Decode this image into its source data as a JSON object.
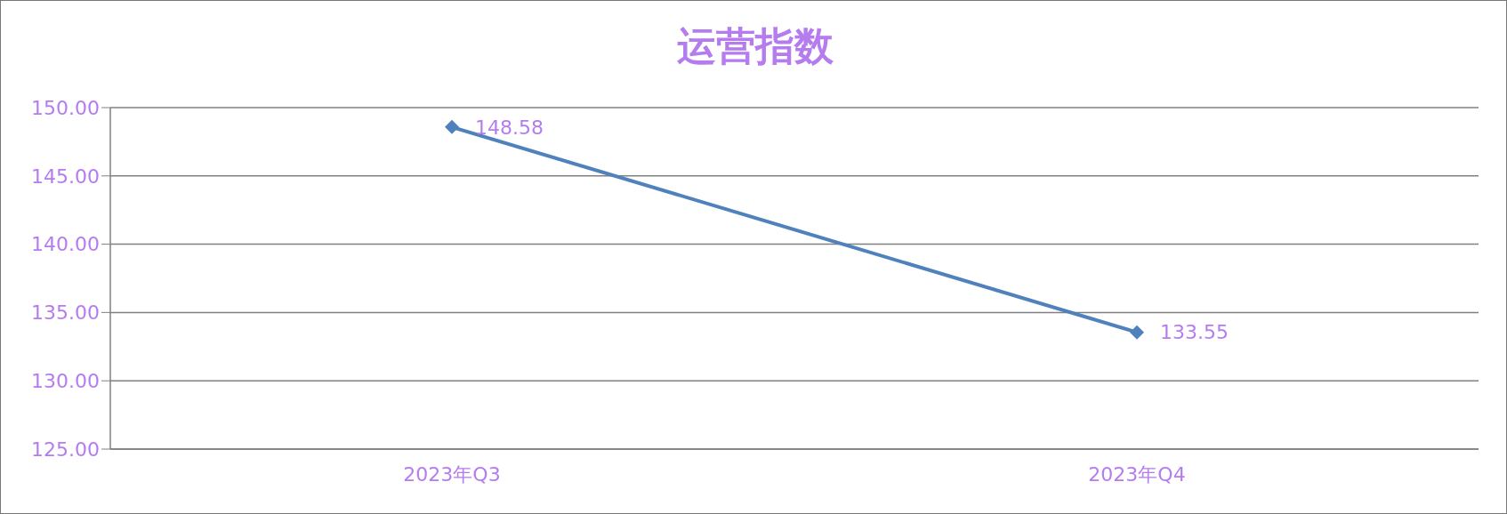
{
  "chart_data": {
    "type": "line",
    "title": "运营指数",
    "categories": [
      "2023年Q3",
      "2023年Q4"
    ],
    "series": [
      {
        "color": "#4f81bd",
        "values": [
          148.58,
          133.55
        ]
      }
    ],
    "ylim": [
      125,
      150
    ],
    "yticks": [
      {
        "value": 125,
        "label": "125.00"
      },
      {
        "value": 130,
        "label": "130.00"
      },
      {
        "value": 135,
        "label": "135.00"
      },
      {
        "value": 140,
        "label": "140.00"
      },
      {
        "value": 145,
        "label": "145.00"
      },
      {
        "value": 150,
        "label": "150.00"
      }
    ],
    "grid": "y",
    "legend": false,
    "marker": "diamond",
    "line_style": "solid",
    "data_labels": true
  }
}
